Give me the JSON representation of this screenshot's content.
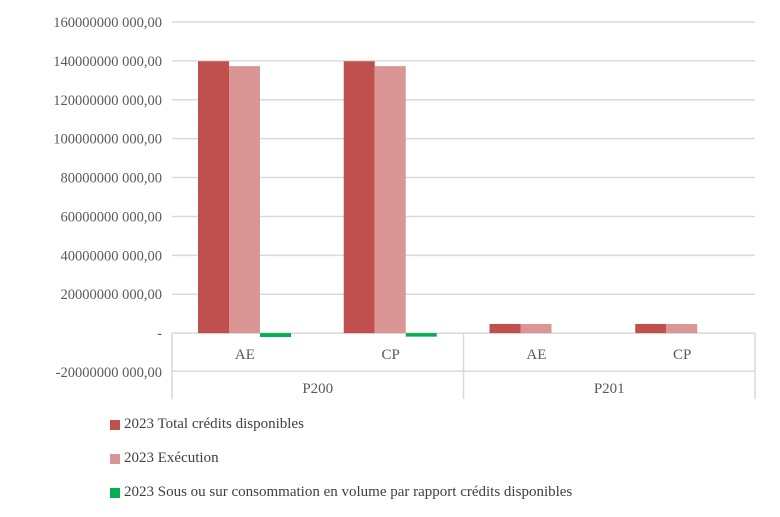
{
  "chart_data": {
    "type": "bar",
    "title": "",
    "xlabel": "",
    "ylabel": "",
    "ylim": [
      -20000000000,
      160000000000
    ],
    "ytick_step": 20000000000,
    "y_tick_labels": [
      "-20000000 000,00",
      "-",
      "20000000 000,00",
      "40000000 000,00",
      "60000000 000,00",
      "80000000 000,00",
      "100000000 000,00",
      "120000000 000,00",
      "140000000 000,00",
      "160000000 000,00"
    ],
    "grid": true,
    "groups": [
      {
        "label": "P200",
        "categories": [
          "AE",
          "CP"
        ]
      },
      {
        "label": "P201",
        "categories": [
          "AE",
          "CP"
        ]
      }
    ],
    "categories": [
      "P200 AE",
      "P200 CP",
      "P201 AE",
      "P201 CP"
    ],
    "series": [
      {
        "name": "2023 Total crédits disponibles",
        "color": "#C0504D",
        "values": [
          139800000000,
          139800000000,
          4700000000,
          4700000000
        ]
      },
      {
        "name": "2023 Exécution",
        "color": "#D99694",
        "values": [
          137300000000,
          137300000000,
          4700000000,
          4700000000
        ]
      },
      {
        "name": "2023 Sous ou sur consommation en volume par rapport crédits disponibles",
        "color": "#00B050",
        "values": [
          -2000000000,
          -1800000000,
          0,
          0
        ]
      }
    ],
    "legend_position": "bottom"
  }
}
